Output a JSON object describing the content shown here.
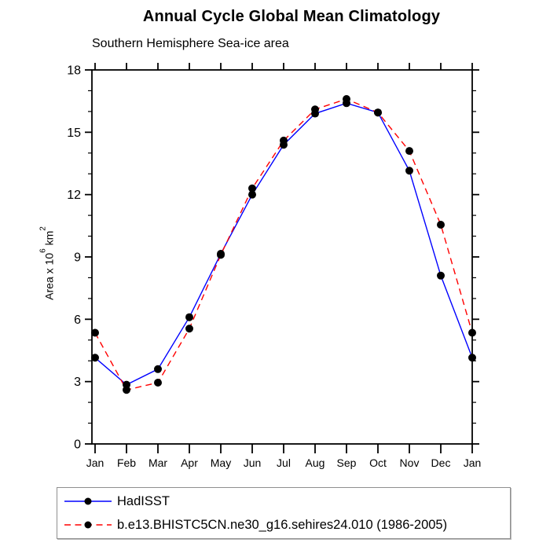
{
  "header": {
    "title": "Annual Cycle Global Mean Climatology",
    "subtitle": "Southern Hemisphere Sea-ice area"
  },
  "chart_data": {
    "type": "line",
    "categories": [
      "Jan",
      "Feb",
      "Mar",
      "Apr",
      "May",
      "Jun",
      "Jul",
      "Aug",
      "Sep",
      "Oct",
      "Nov",
      "Dec",
      "Jan"
    ],
    "series": [
      {
        "name": "HadISST",
        "color": "#0000ff",
        "style": "solid",
        "marker": "circle",
        "marker_color": "#000000",
        "values": [
          4.15,
          2.85,
          3.6,
          6.1,
          9.15,
          12.0,
          14.4,
          15.9,
          16.4,
          15.95,
          13.15,
          8.1,
          4.15
        ]
      },
      {
        "name": "b.e13.BHISTC5CN.ne30_g16.sehires24.010 (1986-2005)",
        "color": "#ff0000",
        "style": "dashed",
        "marker": "circle",
        "marker_color": "#000000",
        "values": [
          5.35,
          2.6,
          2.95,
          5.55,
          9.1,
          12.3,
          14.6,
          16.1,
          16.6,
          15.95,
          14.1,
          10.55,
          5.35
        ]
      }
    ],
    "title": "Annual Cycle Global Mean Climatology",
    "subtitle": "Southern Hemisphere Sea-ice area",
    "xlabel": "",
    "ylabel": "Area x 10^6 km^2",
    "ylabel_parts": {
      "base": "Area x 10",
      "sup": "6",
      "unit": " km",
      "unit_sup": "2"
    },
    "ylim": [
      0,
      18
    ],
    "ytick_step": 3,
    "yminor_step": 1,
    "ytick_labels": [
      "0",
      "3",
      "6",
      "9",
      "12",
      "15",
      "18"
    ],
    "grid": false,
    "legend_position": "bottom",
    "axis_color": "#000000",
    "legend_border_color": "#8f8f8f"
  }
}
